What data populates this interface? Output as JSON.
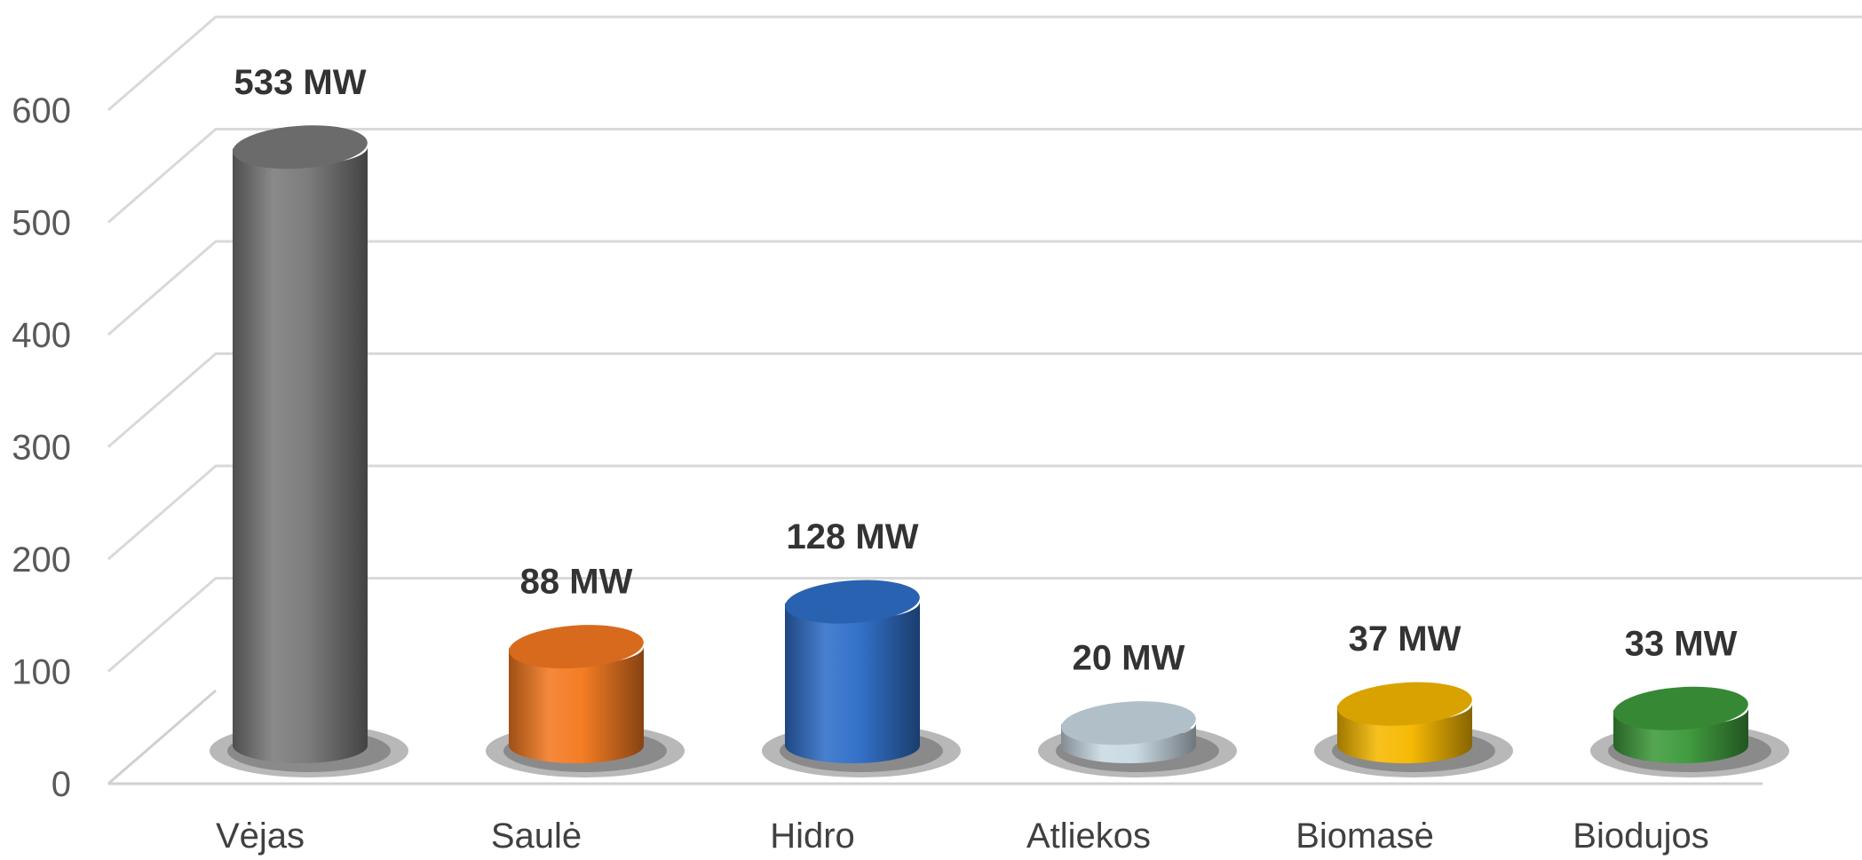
{
  "chart_data": {
    "type": "bar",
    "style": "3d-cylinder",
    "categories": [
      "Vėjas",
      "Saulė",
      "Hidro",
      "Atliekos",
      "Biomasė",
      "Biodujos"
    ],
    "values": [
      533,
      88,
      128,
      20,
      37,
      33
    ],
    "data_labels": [
      "533 MW",
      "88 MW",
      "128 MW",
      "20 MW",
      "37 MW",
      "33 MW"
    ],
    "colors": [
      "#7a7a7a",
      "#f47920",
      "#2f6fc8",
      "#c9d9e3",
      "#f6b800",
      "#3e9a3c"
    ],
    "title": "",
    "xlabel": "",
    "ylabel": "",
    "ylim": [
      0,
      600
    ],
    "yticks": [
      0,
      100,
      200,
      300,
      400,
      500,
      600
    ],
    "grid": true,
    "legend": "none"
  }
}
